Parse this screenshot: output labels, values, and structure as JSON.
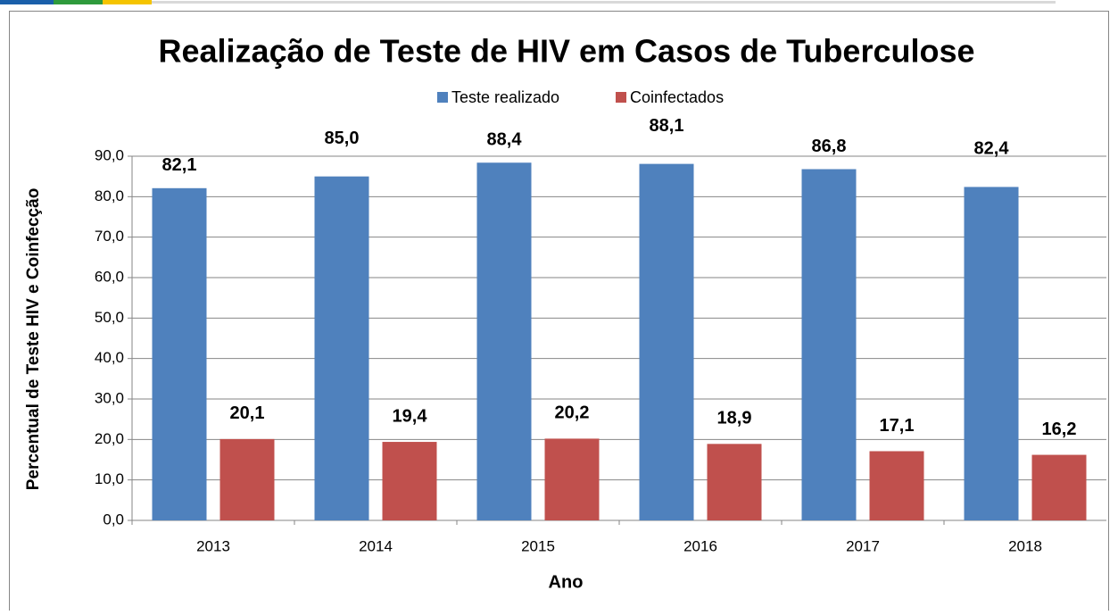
{
  "chart_data": {
    "type": "bar",
    "title": "Realização de Teste de HIV em Casos de Tuberculose",
    "x_label": "Ano",
    "y_label": "Percentual de Teste HIV e Coinfecção",
    "categories": [
      "2013",
      "2014",
      "2015",
      "2016",
      "2017",
      "2018"
    ],
    "series": [
      {
        "name": "Teste realizado",
        "color": "#4f81bd",
        "values": [
          82.1,
          85.0,
          88.4,
          88.1,
          86.8,
          82.4
        ],
        "value_labels": [
          "82,1",
          "85,0",
          "88,4",
          "88,1",
          "86,8",
          "82,4"
        ]
      },
      {
        "name": "Coinfectados",
        "color": "#c0504d",
        "values": [
          20.1,
          19.4,
          20.2,
          18.9,
          17.1,
          16.2
        ],
        "value_labels": [
          "20,1",
          "19,4",
          "20,2",
          "18,9",
          "17,1",
          "16,2"
        ]
      }
    ],
    "ylim": [
      0,
      90
    ],
    "yticks": [
      {
        "value": 0,
        "label": "0,0"
      },
      {
        "value": 10,
        "label": "10,0"
      },
      {
        "value": 20,
        "label": "20,0"
      },
      {
        "value": 30,
        "label": "30,0"
      },
      {
        "value": 40,
        "label": "40,0"
      },
      {
        "value": 50,
        "label": "50,0"
      },
      {
        "value": 60,
        "label": "60,0"
      },
      {
        "value": 70,
        "label": "70,0"
      },
      {
        "value": 80,
        "label": "80,0"
      },
      {
        "value": 90,
        "label": "90,0"
      }
    ],
    "grid": true,
    "legend": "top"
  }
}
